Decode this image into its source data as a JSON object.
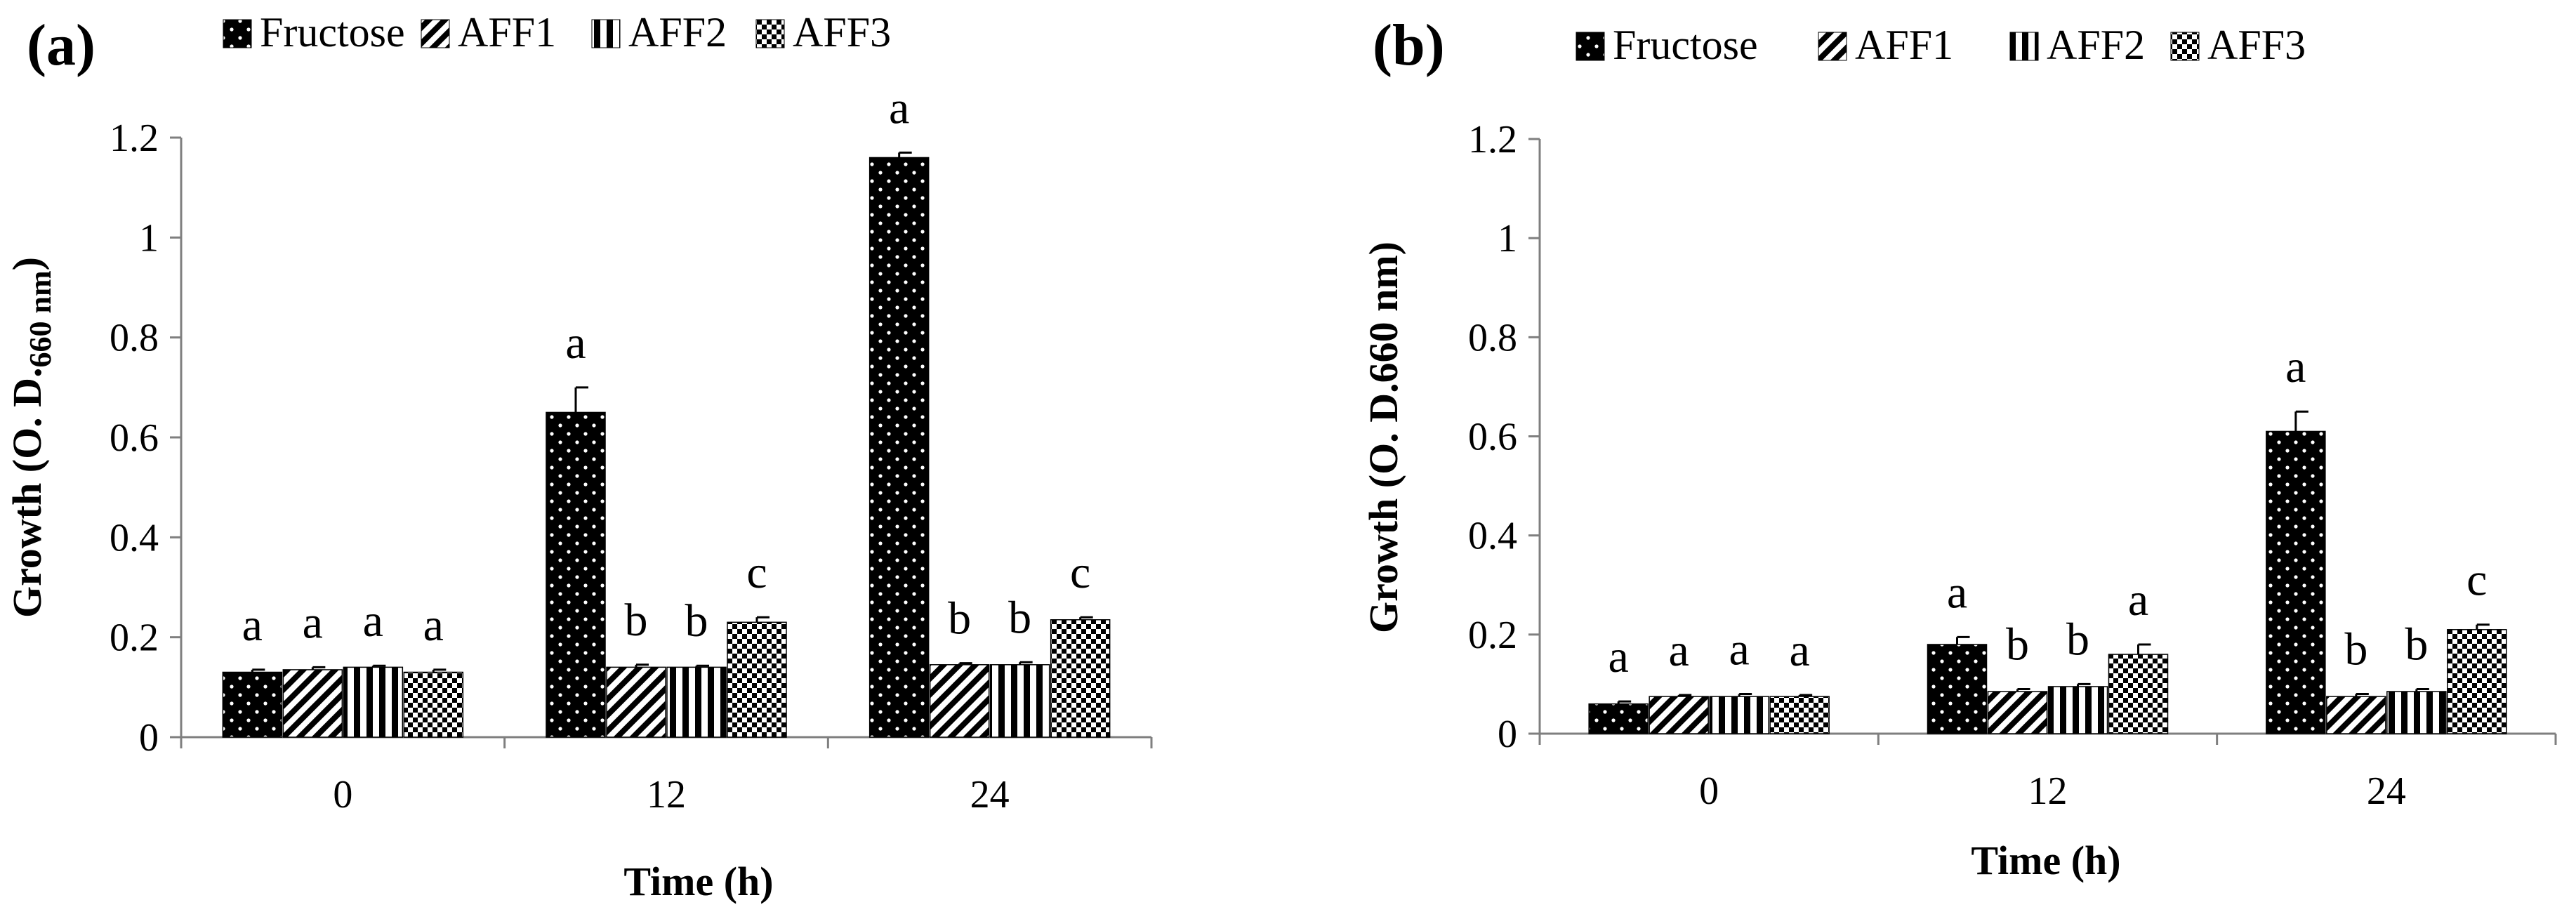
{
  "chart_data": [
    {
      "type": "bar",
      "panel": "(a)",
      "categories": [
        "0",
        "12",
        "24"
      ],
      "series": [
        {
          "name": "Fructose",
          "values": [
            0.13,
            0.65,
            1.16
          ],
          "errors": [
            0.005,
            0.05,
            0.01
          ]
        },
        {
          "name": "AFF1",
          "values": [
            0.135,
            0.14,
            0.145
          ],
          "errors": [
            0.005,
            0.005,
            0.003
          ]
        },
        {
          "name": "AFF2",
          "values": [
            0.14,
            0.14,
            0.145
          ],
          "errors": [
            0.003,
            0.003,
            0.005
          ]
        },
        {
          "name": "AFF3",
          "values": [
            0.13,
            0.23,
            0.235
          ],
          "errors": [
            0.005,
            0.01,
            0.005
          ]
        }
      ],
      "sig_labels": [
        [
          "a",
          "a",
          "a",
          "a"
        ],
        [
          "a",
          "b",
          "b",
          "c"
        ],
        [
          "a",
          "b",
          "b",
          "c"
        ]
      ],
      "ylabel_main": "Growth (O. D.",
      "ylabel_sub": "660 nm",
      "ylabel_close": ")",
      "xlabel": "Time (h)",
      "ylim": [
        0,
        1.2
      ],
      "yticks": [
        "0",
        "0.2",
        "0.4",
        "0.6",
        "0.8",
        "1",
        "1.2"
      ],
      "legend_position": "top"
    },
    {
      "type": "bar",
      "panel": "(b)",
      "categories": [
        "0",
        "12",
        "24"
      ],
      "series": [
        {
          "name": "Fructose",
          "values": [
            0.06,
            0.18,
            0.61
          ],
          "errors": [
            0.005,
            0.015,
            0.04
          ]
        },
        {
          "name": "AFF1",
          "values": [
            0.075,
            0.085,
            0.075
          ],
          "errors": [
            0.003,
            0.005,
            0.005
          ]
        },
        {
          "name": "AFF2",
          "values": [
            0.075,
            0.095,
            0.085
          ],
          "errors": [
            0.005,
            0.005,
            0.005
          ]
        },
        {
          "name": "AFF3",
          "values": [
            0.075,
            0.16,
            0.21
          ],
          "errors": [
            0.003,
            0.02,
            0.01
          ]
        }
      ],
      "sig_labels": [
        [
          "a",
          "a",
          "a",
          "a"
        ],
        [
          "a",
          "b",
          "b",
          "a"
        ],
        [
          "a",
          "b",
          "b",
          "c"
        ]
      ],
      "ylabel": "Growth (O. D.660 nm)",
      "xlabel": "Time (h)",
      "ylim": [
        0,
        1.2
      ],
      "yticks": [
        "0",
        "0.2",
        "0.4",
        "0.6",
        "0.8",
        "1",
        "1.2"
      ],
      "legend_position": "top"
    }
  ]
}
